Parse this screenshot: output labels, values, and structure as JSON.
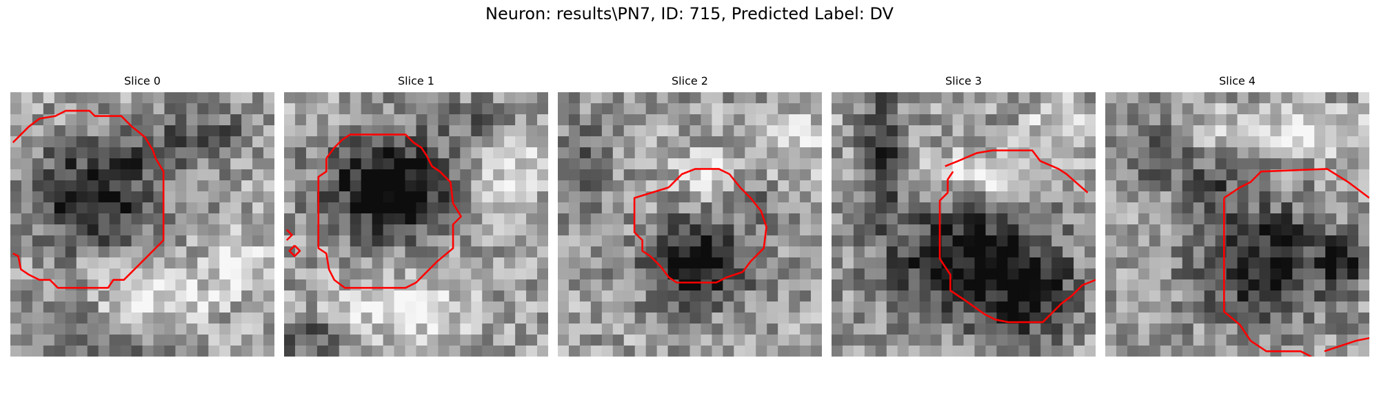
{
  "figure": {
    "title": "Neuron: results\\PN7, ID: 715, Predicted Label: DV"
  },
  "style": {
    "contour_color": "#ff0000"
  },
  "panels": [
    {
      "title": "Slice 0"
    },
    {
      "title": "Slice 1"
    },
    {
      "title": "Slice 2"
    },
    {
      "title": "Slice 3"
    },
    {
      "title": "Slice 4"
    }
  ]
}
